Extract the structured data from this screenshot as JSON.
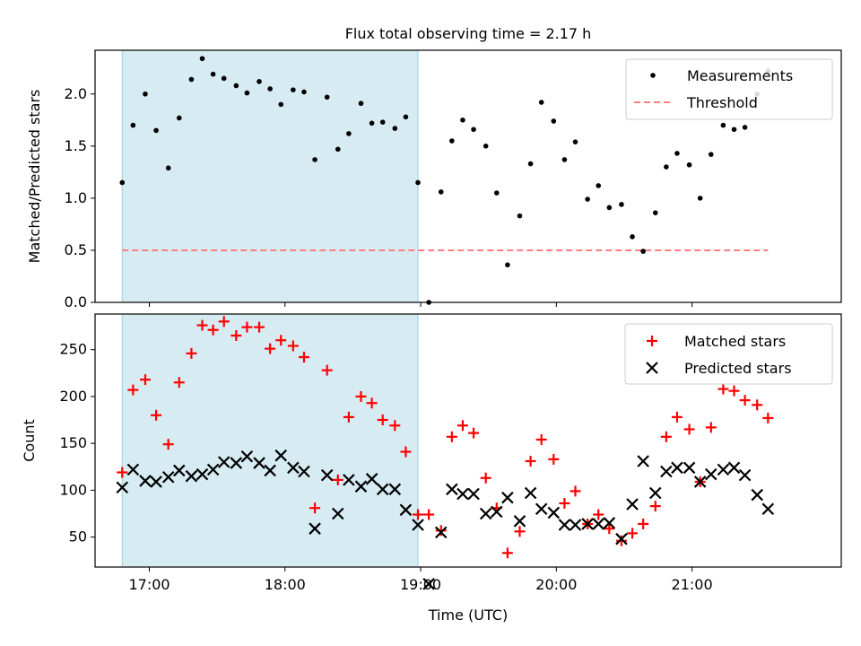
{
  "chart_data": {
    "title": "Flux total observing time = 2.17 h",
    "xlabel": "Time (UTC)",
    "x_unit": "hours (UTC)",
    "xlim": [
      16.6,
      22.1
    ],
    "x_ticks": [
      {
        "value": 17,
        "label": "17:00"
      },
      {
        "value": 18,
        "label": "18:00"
      },
      {
        "value": 19,
        "label": "19:00"
      },
      {
        "value": 20,
        "label": "20:00"
      },
      {
        "value": 21,
        "label": "21:00"
      }
    ],
    "shaded_span": {
      "x": [
        16.8,
        18.98
      ],
      "color": "#add8e6"
    },
    "x": [
      16.8,
      16.88,
      16.97,
      17.05,
      17.14,
      17.22,
      17.31,
      17.39,
      17.47,
      17.55,
      17.64,
      17.72,
      17.81,
      17.89,
      17.97,
      18.06,
      18.14,
      18.22,
      18.31,
      18.39,
      18.47,
      18.56,
      18.64,
      18.72,
      18.81,
      18.89,
      18.98,
      19.06,
      19.15,
      19.23,
      19.31,
      19.39,
      19.48,
      19.56,
      19.64,
      19.73,
      19.81,
      19.89,
      19.98,
      20.06,
      20.14,
      20.23,
      20.31,
      20.39,
      20.48,
      20.56,
      20.64,
      20.73,
      20.81,
      20.89,
      20.98,
      21.06,
      21.14,
      21.23,
      21.31,
      21.39,
      21.48,
      21.56
    ],
    "panels": [
      {
        "type": "scatter",
        "ylabel": "Matched/Predicted stars",
        "ylim": [
          0,
          2.42
        ],
        "y_ticks": [
          "0.0",
          "0.5",
          "1.0",
          "1.5",
          "2.0"
        ],
        "legend_position": "top-right",
        "series": [
          {
            "name": "Measurements",
            "marker": "dot",
            "color": "#000000",
            "values": [
              1.15,
              1.7,
              2.0,
              1.65,
              1.29,
              1.77,
              2.14,
              2.34,
              2.19,
              2.15,
              2.08,
              2.01,
              2.12,
              2.05,
              1.9,
              2.04,
              2.02,
              1.37,
              1.97,
              1.47,
              1.62,
              1.91,
              1.72,
              1.73,
              1.67,
              1.78,
              1.15,
              0.0,
              1.06,
              1.55,
              1.75,
              1.66,
              1.5,
              1.05,
              0.36,
              0.83,
              1.33,
              1.92,
              1.74,
              1.37,
              1.54,
              0.99,
              1.12,
              0.91,
              0.94,
              0.63,
              0.49,
              0.86,
              1.3,
              1.43,
              1.32,
              1.0,
              1.42,
              1.7,
              1.66,
              1.68,
              2.0,
              2.22
            ]
          }
        ],
        "threshold": {
          "name": "Threshold",
          "value": 0.5,
          "x_range": [
            16.8,
            21.56
          ],
          "color": "#ff7f7f"
        }
      },
      {
        "type": "scatter",
        "ylabel": "Count",
        "ylim": [
          18,
          288
        ],
        "y_ticks": [
          "50",
          "100",
          "150",
          "200",
          "250"
        ],
        "legend_position": "top-right",
        "series": [
          {
            "name": "Matched stars",
            "marker": "plus",
            "color": "#ff0000",
            "values": [
              119,
              207,
              218,
              180,
              149,
              215,
              246,
              276,
              271,
              280,
              265,
              274,
              274,
              251,
              260,
              254,
              242,
              81,
              228,
              111,
              178,
              200,
              193,
              175,
              169,
              141,
              74,
              74,
              57,
              157,
              169,
              161,
              113,
              81,
              33,
              56,
              131,
              154,
              133,
              86,
              99,
              64,
              74,
              59,
              46,
              54,
              64,
              83,
              157,
              178,
              165,
              109,
              167,
              208,
              206,
              196,
              191,
              177
            ]
          },
          {
            "name": "Predicted stars",
            "marker": "x",
            "color": "#000000",
            "values": [
              103,
              122,
              110,
              109,
              114,
              121,
              115,
              117,
              122,
              130,
              129,
              136,
              129,
              121,
              137,
              124,
              120,
              59,
              116,
              75,
              111,
              104,
              112,
              101,
              101,
              79,
              63,
              0,
              55,
              101,
              96,
              96,
              75,
              77,
              92,
              67,
              97,
              80,
              76,
              63,
              63,
              64,
              64,
              65,
              48,
              85,
              131,
              97,
              120,
              124,
              124,
              109,
              117,
              122,
              124,
              116,
              95,
              80
            ]
          }
        ]
      }
    ]
  }
}
